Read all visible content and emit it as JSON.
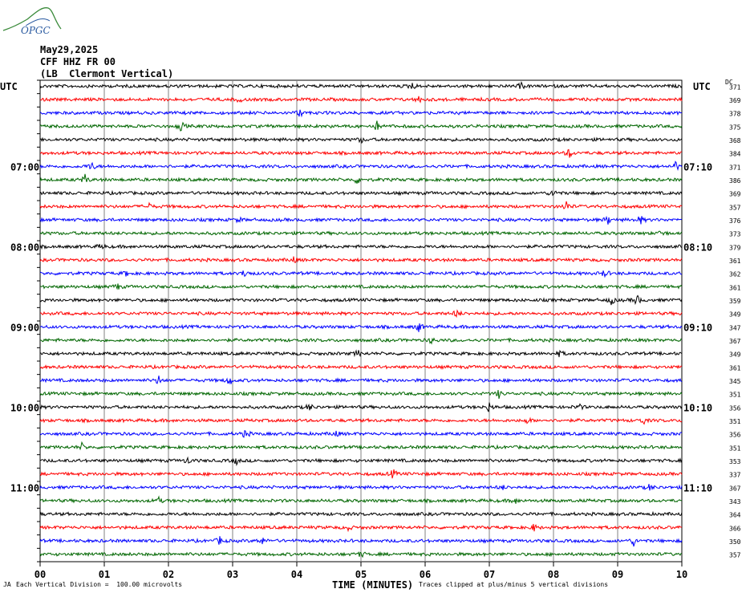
{
  "header": {
    "logo_text": "OPGC",
    "date": "May29,2025",
    "station": "CFF HHZ FR 00",
    "location": "(LB  Clermont Vertical)"
  },
  "axes": {
    "left_tz": "UTC",
    "right_tz": "UTC",
    "dc_label": "DC",
    "xlabel": "TIME (MINUTES)"
  },
  "footer": {
    "scale_note": "Each Vertical Division =  100.00 microvolts",
    "clip_note": "Traces clipped at plus/minus 5 vertical divisions",
    "mark": "JA"
  },
  "colors": {
    "black": "#000000",
    "red": "#ff0000",
    "blue": "#0000ff",
    "green": "#006600",
    "grid": "#808080"
  },
  "chart_data": {
    "type": "line",
    "title": "",
    "xlabel": "TIME (MINUTES)",
    "xlim": [
      0,
      10
    ],
    "x_ticks": [
      "00",
      "01",
      "02",
      "03",
      "04",
      "05",
      "06",
      "07",
      "08",
      "09",
      "10"
    ],
    "trace_minutes": 10,
    "color_cycle": [
      "black",
      "red",
      "blue",
      "green"
    ],
    "left_time_labels": [
      {
        "row": 6,
        "label": "07:00"
      },
      {
        "row": 12,
        "label": "08:00"
      },
      {
        "row": 18,
        "label": "09:00"
      },
      {
        "row": 24,
        "label": "10:00"
      },
      {
        "row": 30,
        "label": "11:00"
      }
    ],
    "right_time_labels": [
      {
        "row": 6,
        "label": "07:10"
      },
      {
        "row": 12,
        "label": "08:10"
      },
      {
        "row": 18,
        "label": "09:10"
      },
      {
        "row": 24,
        "label": "10:10"
      },
      {
        "row": 30,
        "label": "11:10"
      }
    ],
    "dc_offsets": [
      "371",
      "369",
      "378",
      "375",
      "368",
      "384",
      "371",
      "386",
      "369",
      "357",
      "376",
      "373",
      "379",
      "361",
      "362",
      "361",
      "359",
      "349",
      "347",
      "367",
      "349",
      "361",
      "345",
      "351",
      "356",
      "351",
      "356",
      "351",
      "353",
      "337",
      "367",
      "343",
      "364",
      "366",
      "350",
      "357"
    ],
    "events": [
      {
        "row": 0,
        "minute": 5.8,
        "amp": 8
      },
      {
        "row": 0,
        "minute": 7.5,
        "amp": 6
      },
      {
        "row": 1,
        "minute": 3.1,
        "amp": 5
      },
      {
        "row": 1,
        "minute": 5.9,
        "amp": 6
      },
      {
        "row": 2,
        "minute": 4.05,
        "amp": 9
      },
      {
        "row": 3,
        "minute": 2.2,
        "amp": 10
      },
      {
        "row": 3,
        "minute": 5.25,
        "amp": 9
      },
      {
        "row": 4,
        "minute": 5.0,
        "amp": 6
      },
      {
        "row": 5,
        "minute": 8.25,
        "amp": 10
      },
      {
        "row": 6,
        "minute": 0.8,
        "amp": 10
      },
      {
        "row": 6,
        "minute": 9.9,
        "amp": 10
      },
      {
        "row": 7,
        "minute": 0.7,
        "amp": 10
      },
      {
        "row": 7,
        "minute": 4.95,
        "amp": 9
      },
      {
        "row": 8,
        "minute": 8.0,
        "amp": 9
      },
      {
        "row": 9,
        "minute": 8.2,
        "amp": 12
      },
      {
        "row": 9,
        "minute": 1.7,
        "amp": 6
      },
      {
        "row": 10,
        "minute": 8.85,
        "amp": 8
      },
      {
        "row": 10,
        "minute": 9.35,
        "amp": 10
      },
      {
        "row": 10,
        "minute": 3.1,
        "amp": 5
      },
      {
        "row": 11,
        "minute": 9.7,
        "amp": 7
      },
      {
        "row": 12,
        "minute": 0.95,
        "amp": 5
      },
      {
        "row": 13,
        "minute": 3.95,
        "amp": 6
      },
      {
        "row": 14,
        "minute": 3.2,
        "amp": 10
      },
      {
        "row": 14,
        "minute": 8.8,
        "amp": 8
      },
      {
        "row": 14,
        "minute": 1.35,
        "amp": 6
      },
      {
        "row": 15,
        "minute": 1.2,
        "amp": 7
      },
      {
        "row": 16,
        "minute": 8.9,
        "amp": 9
      },
      {
        "row": 16,
        "minute": 9.3,
        "amp": 11
      },
      {
        "row": 17,
        "minute": 6.5,
        "amp": 9
      },
      {
        "row": 18,
        "minute": 5.9,
        "amp": 10
      },
      {
        "row": 19,
        "minute": 6.1,
        "amp": 6
      },
      {
        "row": 20,
        "minute": 4.95,
        "amp": 7
      },
      {
        "row": 20,
        "minute": 8.1,
        "amp": 6
      },
      {
        "row": 22,
        "minute": 1.85,
        "amp": 9
      },
      {
        "row": 22,
        "minute": 2.95,
        "amp": 10
      },
      {
        "row": 23,
        "minute": 7.15,
        "amp": 8
      },
      {
        "row": 24,
        "minute": 7.0,
        "amp": 10
      },
      {
        "row": 24,
        "minute": 4.2,
        "amp": 7
      },
      {
        "row": 24,
        "minute": 8.4,
        "amp": 6
      },
      {
        "row": 25,
        "minute": 7.6,
        "amp": 6
      },
      {
        "row": 25,
        "minute": 9.4,
        "amp": 7
      },
      {
        "row": 26,
        "minute": 3.2,
        "amp": 9
      },
      {
        "row": 26,
        "minute": 4.6,
        "amp": 7
      },
      {
        "row": 27,
        "minute": 0.65,
        "amp": 7
      },
      {
        "row": 28,
        "minute": 2.3,
        "amp": 7
      },
      {
        "row": 28,
        "minute": 3.05,
        "amp": 8
      },
      {
        "row": 29,
        "minute": 5.5,
        "amp": 10
      },
      {
        "row": 30,
        "minute": 7.2,
        "amp": 5
      },
      {
        "row": 30,
        "minute": 9.5,
        "amp": 6
      },
      {
        "row": 31,
        "minute": 1.85,
        "amp": 6
      },
      {
        "row": 31,
        "minute": 7.4,
        "amp": 6
      },
      {
        "row": 33,
        "minute": 7.7,
        "amp": 7
      },
      {
        "row": 33,
        "minute": 4.8,
        "amp": 5
      },
      {
        "row": 34,
        "minute": 2.8,
        "amp": 8
      },
      {
        "row": 34,
        "minute": 3.45,
        "amp": 9
      },
      {
        "row": 34,
        "minute": 9.25,
        "amp": 9
      },
      {
        "row": 35,
        "minute": 5.0,
        "amp": 6
      }
    ]
  }
}
